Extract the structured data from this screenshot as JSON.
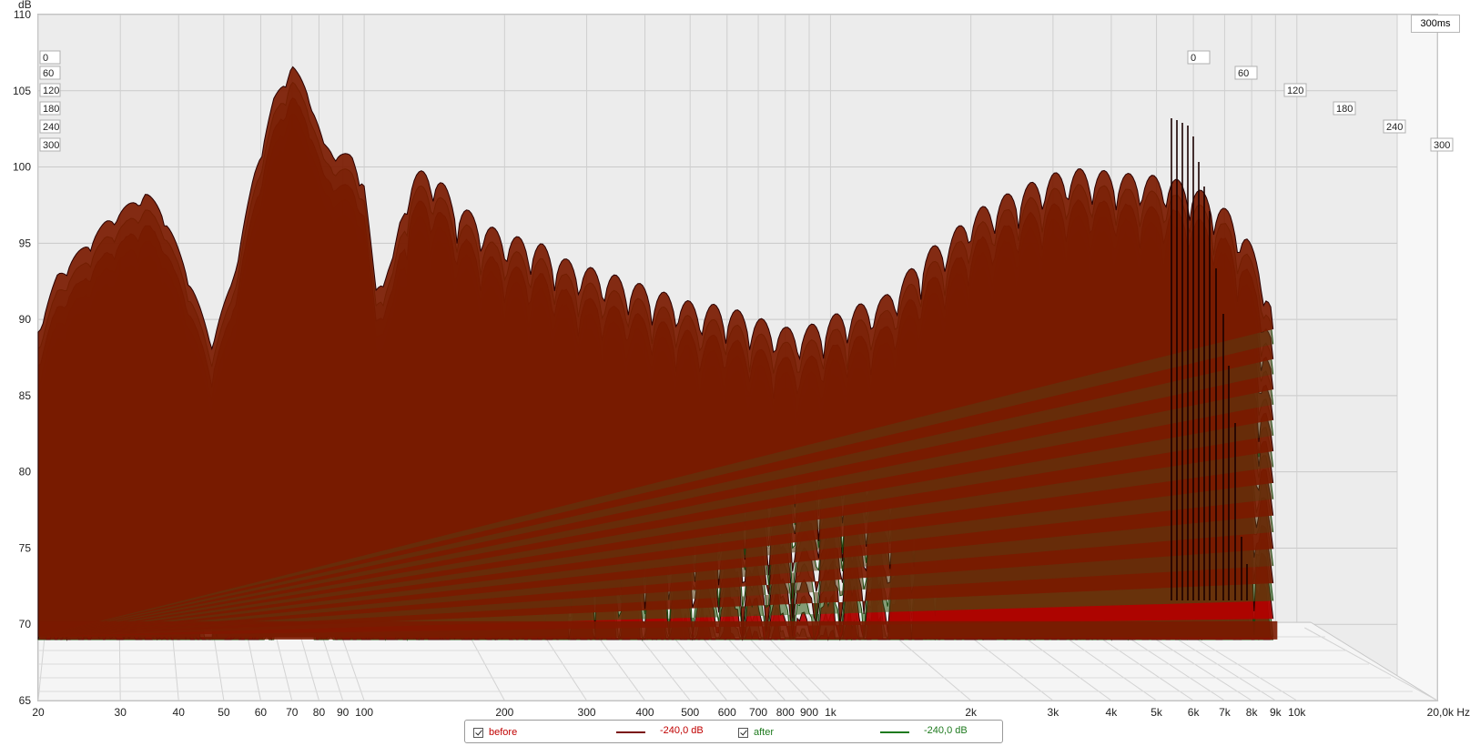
{
  "chart_data": {
    "type": "area",
    "subtype": "waterfall-3d",
    "x_unit": "Hz",
    "y_unit": "dB",
    "xscale": "log",
    "xlim": [
      20,
      20000
    ],
    "ylim": [
      65,
      110
    ],
    "y_ticks": [
      "65",
      "70",
      "75",
      "80",
      "85",
      "90",
      "95",
      "100",
      "105",
      "110"
    ],
    "x_tick_labels": [
      {
        "f": 20,
        "label": "20"
      },
      {
        "f": 30,
        "label": "30"
      },
      {
        "f": 40,
        "label": "40"
      },
      {
        "f": 50,
        "label": "50"
      },
      {
        "f": 60,
        "label": "60"
      },
      {
        "f": 70,
        "label": "70"
      },
      {
        "f": 80,
        "label": "80"
      },
      {
        "f": 90,
        "label": "90"
      },
      {
        "f": 100,
        "label": "100"
      },
      {
        "f": 200,
        "label": "200"
      },
      {
        "f": 300,
        "label": "300"
      },
      {
        "f": 400,
        "label": "400"
      },
      {
        "f": 500,
        "label": "500"
      },
      {
        "f": 600,
        "label": "600"
      },
      {
        "f": 700,
        "label": "700"
      },
      {
        "f": 800,
        "label": "800"
      },
      {
        "f": 900,
        "label": "900"
      },
      {
        "f": 1000,
        "label": "1k"
      },
      {
        "f": 2000,
        "label": "2k"
      },
      {
        "f": 3000,
        "label": "3k"
      },
      {
        "f": 4000,
        "label": "4k"
      },
      {
        "f": 5000,
        "label": "5k"
      },
      {
        "f": 6000,
        "label": "6k"
      },
      {
        "f": 7000,
        "label": "7k"
      },
      {
        "f": 8000,
        "label": "8k"
      },
      {
        "f": 9000,
        "label": "9k"
      },
      {
        "f": 10000,
        "label": "10k"
      },
      {
        "f": 20000,
        "label": "20,0k Hz"
      }
    ],
    "time_ticks_ms": [
      "0",
      "60",
      "120",
      "180",
      "240",
      "300"
    ],
    "time_label": "300ms",
    "series": [
      {
        "name": "before",
        "color": "#c00000",
        "shade": "#7a1a00",
        "level_label": "-240,0 dB",
        "peak_envelope": {
          "freq": [
            20,
            22,
            25,
            28,
            31,
            34,
            37,
            42,
            47,
            52,
            58,
            64,
            70,
            76,
            82,
            88,
            94,
            100,
            106,
            115,
            125,
            140,
            155,
            170,
            190,
            210,
            240,
            270,
            300,
            340,
            380,
            420,
            470,
            520,
            580,
            650,
            720,
            800,
            880,
            960,
            1050,
            1150,
            1300,
            1450,
            1600,
            1800,
            2000,
            2300,
            2600,
            3000,
            3400,
            3800,
            4300,
            4800,
            5400,
            6000,
            6600,
            7200,
            7800,
            8400,
            8800,
            9100
          ],
          "db": [
            89.5,
            93,
            94.8,
            96.5,
            97.5,
            98.4,
            97.2,
            93,
            88.6,
            92.5,
            99.5,
            104.5,
            106.8,
            105,
            101.5,
            101,
            100.8,
            99,
            92,
            94,
            99.5,
            100,
            98,
            97,
            96,
            95.5,
            95,
            94,
            93.5,
            93,
            92.5,
            92,
            91.5,
            91,
            91,
            90.5,
            90,
            89.5,
            89.5,
            90,
            90.5,
            91,
            91.5,
            93,
            94.5,
            95.5,
            97,
            98,
            98.8,
            99.6,
            99.9,
            99.8,
            99.6,
            99.5,
            99.3,
            98.8,
            98,
            97,
            95.5,
            93.5,
            91,
            86
          ]
        }
      },
      {
        "name": "after",
        "color": "#1e7a1e",
        "shade": "#2e6a1a",
        "level_label": "-240,0 dB"
      }
    ]
  },
  "legend": {
    "items": [
      {
        "label": "before",
        "value": "-240,0 dB",
        "color": "#c00000",
        "line_color": "#7a1010"
      },
      {
        "label": "after",
        "value": "-240,0 dB",
        "color": "#1e7a1e",
        "line_color": "#1e7a1e"
      }
    ]
  },
  "ui": {
    "y_unit_label": "dB",
    "time_box": "300ms"
  }
}
